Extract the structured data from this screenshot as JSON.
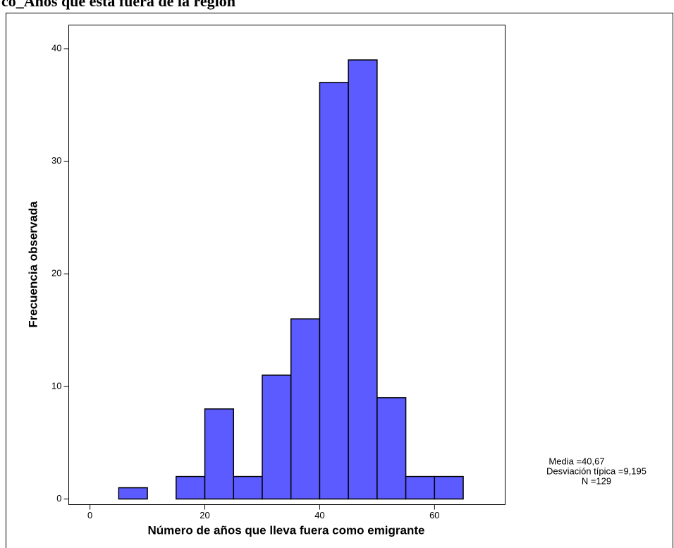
{
  "chart_data": {
    "type": "histogram",
    "title": "co_Años que está fuera de la región",
    "xlabel": "Número de años que lleva fuera como emigrante",
    "ylabel": "Frecuencia observada",
    "bins": [
      5,
      10,
      15,
      20,
      25,
      30,
      35,
      40,
      45,
      50,
      55,
      60,
      65
    ],
    "values": [
      1,
      0,
      2,
      8,
      2,
      11,
      16,
      37,
      39,
      9,
      2,
      2
    ],
    "color": "#5b5bff",
    "xlim": [
      -3.7,
      72.3
    ],
    "xticks": [
      0,
      20,
      40,
      60
    ],
    "ylim": [
      -0.5,
      42.1
    ],
    "yticks": [
      0,
      10,
      20,
      30,
      40
    ],
    "annotations": [
      "Media =40,67",
      "Desviación típica =9,195",
      "N =129"
    ]
  }
}
